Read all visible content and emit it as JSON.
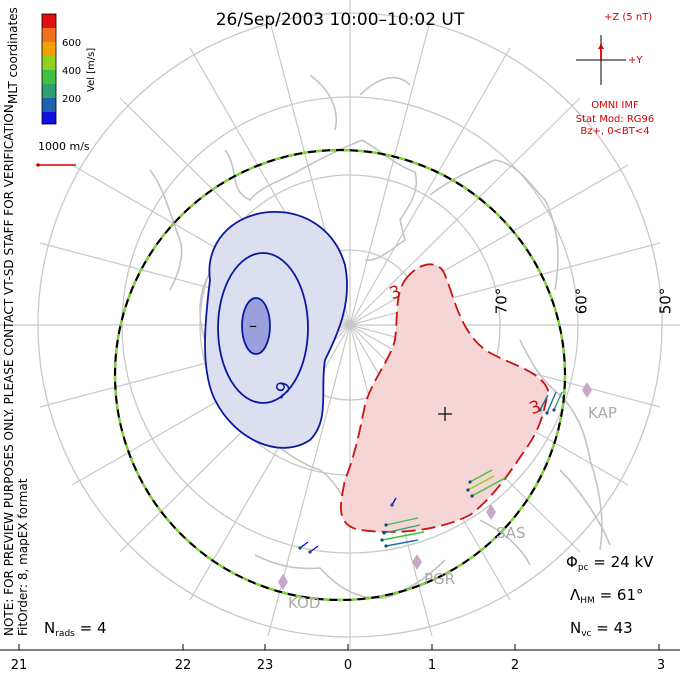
{
  "title": "26/Sep/2003 10:00–10:02 UT",
  "side_note": "NOTE: FOR PREVIEW PURPOSES ONLY. PLEASE CONTACT VT-SD STAFF FOR VERIFICATION.",
  "fit_info": "FitOrder: 8, mapEX format",
  "coords_label": "MLT coordinates",
  "colorbar": {
    "unit_label": "Vel [m/s]",
    "ticks": [
      "600",
      "400",
      "200"
    ],
    "colors": [
      "#e01010",
      "#f07020",
      "#f0a000",
      "#90d020",
      "#40c040",
      "#30a070",
      "#2060b0",
      "#1010e0"
    ]
  },
  "velocity_scale_label": "1000 m/s",
  "imf": {
    "z_label": "+Z (5 nT)",
    "y_label": "+Y",
    "source": "OMNI IMF",
    "model": "Stat Mod: RG96",
    "condition": "Bz+, 0<BT<4"
  },
  "contours": {
    "negative_label": "-9",
    "positive_label": "3",
    "positive_label_2": "3",
    "min_marker": "–",
    "max_marker": "+",
    "negative_color": "#0a1aa0",
    "positive_color": "#cc1111"
  },
  "latitudes": [
    "70°",
    "60°",
    "50°"
  ],
  "sites": [
    "KAP",
    "SAS",
    "PGR",
    "KOD"
  ],
  "stats": {
    "phi_symbol": "Φ",
    "phi_sub": "pc",
    "phi_value": "= 24 kV",
    "lambda_symbol": "Λ",
    "lambda_sub": "HM",
    "lambda_value": "= 61°",
    "nvc_symbol": "N",
    "nvc_sub": "vc",
    "nvc_value": "= 43",
    "nrads_symbol": "N",
    "nrads_sub": "rads",
    "nrads_value": "= 4"
  },
  "mlt_ticks": [
    "21",
    "22",
    "23",
    "0",
    "1",
    "2",
    "3"
  ]
}
